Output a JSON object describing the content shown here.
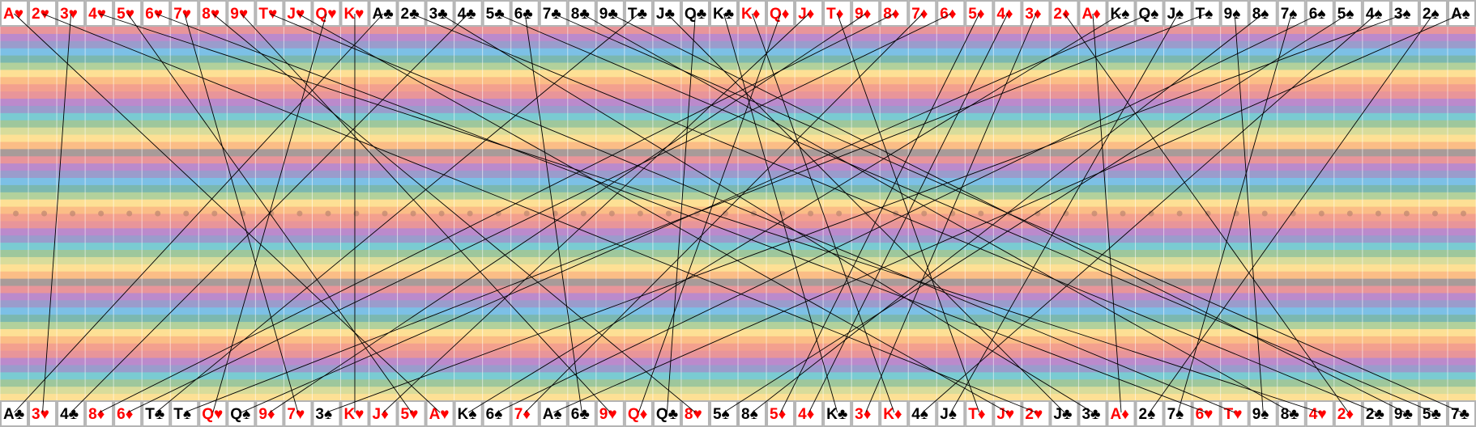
{
  "top_row": [
    "A♥",
    "2♥",
    "3♥",
    "4♥",
    "5♥",
    "6♥",
    "7♥",
    "8♥",
    "9♥",
    "T♥",
    "J♥",
    "Q♥",
    "K♥",
    "A♣",
    "2♣",
    "3♣",
    "4♣",
    "5♣",
    "6♣",
    "7♣",
    "8♣",
    "9♣",
    "T♣",
    "J♣",
    "Q♣",
    "K♣",
    "K♦",
    "Q♦",
    "J♦",
    "T♦",
    "9♦",
    "8♦",
    "7♦",
    "6♦",
    "5♦",
    "4♦",
    "3♦",
    "2♦",
    "A♦",
    "K♠",
    "Q♠",
    "J♠",
    "T♠",
    "9♠",
    "8♠",
    "7♠",
    "6♠",
    "5♠",
    "4♠",
    "3♠",
    "2♠",
    "A♠"
  ],
  "bottom_row": [
    "A♣",
    "3♥",
    "4♣",
    "8♦",
    "6♦",
    "T♣",
    "T♠",
    "Q♥",
    "Q♠",
    "9♦",
    "7♥",
    "3♠",
    "K♥",
    "J♦",
    "5♥",
    "A♥",
    "K♠",
    "6♠",
    "7♦",
    "A♠",
    "6♣",
    "9♥",
    "Q♦",
    "Q♣",
    "8♥",
    "5♠",
    "8♠",
    "5♦",
    "4♦",
    "K♣",
    "3♦",
    "K♦",
    "4♠",
    "J♠",
    "T♦",
    "J♥",
    "2♥",
    "J♣",
    "3♣",
    "A♦",
    "2♠",
    "7♠",
    "6♥",
    "T♥",
    "9♠",
    "8♣",
    "4♥",
    "2♦",
    "2♣",
    "9♣",
    "5♣",
    "7♣"
  ],
  "colors": {
    "red_suit": "#ff0000",
    "black_suit": "#000000",
    "card_border": "#b4b4b4",
    "card_face": "#ffffff",
    "connector": "#000000",
    "dot": "#c08870",
    "stripe_cycle": [
      "#e8959a",
      "#bb8acc",
      "#9a9ccc",
      "#7cc0e6",
      "#7bb8b0",
      "#b2d19c",
      "#fde095",
      "#fbbd86",
      "#f3a08e",
      "#e8959a",
      "#bb8acc",
      "#9a9ccc",
      "#7acbd2",
      "#9ec79c",
      "#d8dc9b",
      "#fde095",
      "#fbbd86",
      "#a89b99"
    ]
  }
}
